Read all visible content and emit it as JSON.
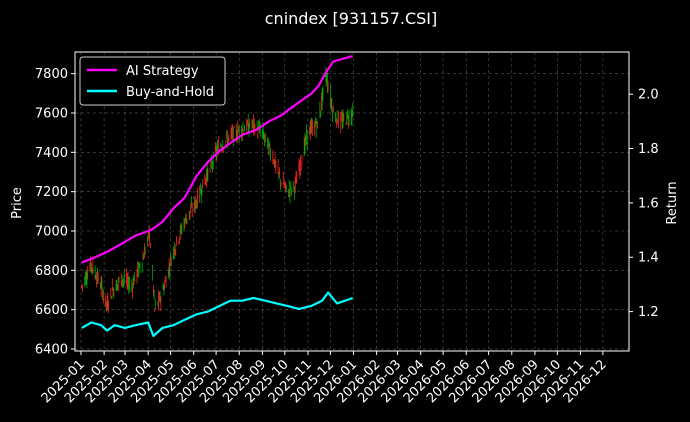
{
  "chart_data": {
    "type": "line",
    "title": "cnindex [931157.CSI]",
    "left_axis": {
      "label": "Price",
      "ylim": [
        6390,
        7910
      ],
      "ticks": [
        6400,
        6600,
        6800,
        7000,
        7200,
        7400,
        7600,
        7800
      ]
    },
    "right_axis": {
      "label": "Return",
      "ylim": [
        1.055,
        2.155
      ],
      "ticks": [
        "1.2",
        "1.4",
        "1.6",
        "1.8",
        "2.0"
      ]
    },
    "x_axis": {
      "start": "2024-12-24",
      "end": "2027-01-05",
      "ticks": [
        "2025-01",
        "2025-02",
        "2025-03",
        "2025-04",
        "2025-05",
        "2025-06",
        "2025-07",
        "2025-08",
        "2025-09",
        "2025-10",
        "2025-11",
        "2025-12",
        "2026-01",
        "2026-02",
        "2026-03",
        "2026-04",
        "2026-05",
        "2026-06",
        "2026-07",
        "2026-08",
        "2026-09",
        "2026-10",
        "2026-11",
        "2026-12"
      ]
    },
    "grid": true,
    "legend_position": "top-left",
    "colors": {
      "background": "#000000",
      "ai_strategy": "#ff00ff",
      "buy_and_hold": "#00ffff",
      "candle_up": "#ff2020",
      "candle_down": "#00b000",
      "grid": "#555555"
    },
    "price_path": [
      [
        "2025-01-02",
        6720
      ],
      [
        "2025-01-15",
        6830
      ],
      [
        "2025-01-28",
        6720
      ],
      [
        "2025-02-05",
        6620
      ],
      [
        "2025-02-12",
        6700
      ],
      [
        "2025-02-25",
        6760
      ],
      [
        "2025-03-10",
        6720
      ],
      [
        "2025-03-25",
        6860
      ],
      [
        "2025-04-03",
        6990
      ],
      [
        "2025-04-10",
        6600
      ],
      [
        "2025-04-20",
        6680
      ],
      [
        "2025-05-05",
        6900
      ],
      [
        "2025-05-20",
        7050
      ],
      [
        "2025-06-05",
        7150
      ],
      [
        "2025-06-20",
        7300
      ],
      [
        "2025-07-05",
        7430
      ],
      [
        "2025-07-20",
        7480
      ],
      [
        "2025-08-05",
        7520
      ],
      [
        "2025-08-20",
        7540
      ],
      [
        "2025-09-01",
        7500
      ],
      [
        "2025-09-15",
        7380
      ],
      [
        "2025-09-25",
        7260
      ],
      [
        "2025-10-05",
        7200
      ],
      [
        "2025-10-15",
        7230
      ],
      [
        "2025-11-01",
        7500
      ],
      [
        "2025-11-15",
        7550
      ],
      [
        "2025-11-25",
        7800
      ],
      [
        "2025-12-05",
        7600
      ],
      [
        "2025-12-15",
        7550
      ],
      [
        "2025-12-31",
        7600
      ]
    ],
    "series": [
      {
        "name": "AI Strategy",
        "points": [
          [
            "2025-01-02",
            1.38
          ],
          [
            "2025-01-20",
            1.4
          ],
          [
            "2025-02-05",
            1.42
          ],
          [
            "2025-02-25",
            1.45
          ],
          [
            "2025-03-15",
            1.48
          ],
          [
            "2025-04-05",
            1.5
          ],
          [
            "2025-04-20",
            1.53
          ],
          [
            "2025-05-05",
            1.58
          ],
          [
            "2025-05-20",
            1.62
          ],
          [
            "2025-06-05",
            1.7
          ],
          [
            "2025-06-20",
            1.75
          ],
          [
            "2025-07-05",
            1.79
          ],
          [
            "2025-07-20",
            1.82
          ],
          [
            "2025-08-05",
            1.85
          ],
          [
            "2025-08-25",
            1.87
          ],
          [
            "2025-09-10",
            1.9
          ],
          [
            "2025-09-25",
            1.92
          ],
          [
            "2025-10-10",
            1.95
          ],
          [
            "2025-10-25",
            1.98
          ],
          [
            "2025-11-05",
            2.0
          ],
          [
            "2025-11-15",
            2.03
          ],
          [
            "2025-11-25",
            2.08
          ],
          [
            "2025-12-05",
            2.12
          ],
          [
            "2025-12-31",
            2.14
          ]
        ]
      },
      {
        "name": "Buy-and-Hold",
        "points": [
          [
            "2025-01-02",
            1.14
          ],
          [
            "2025-01-15",
            1.16
          ],
          [
            "2025-01-28",
            1.15
          ],
          [
            "2025-02-05",
            1.13
          ],
          [
            "2025-02-15",
            1.15
          ],
          [
            "2025-03-01",
            1.14
          ],
          [
            "2025-03-15",
            1.15
          ],
          [
            "2025-04-01",
            1.16
          ],
          [
            "2025-04-08",
            1.11
          ],
          [
            "2025-04-20",
            1.14
          ],
          [
            "2025-05-05",
            1.15
          ],
          [
            "2025-05-20",
            1.17
          ],
          [
            "2025-06-05",
            1.19
          ],
          [
            "2025-06-20",
            1.2
          ],
          [
            "2025-07-05",
            1.22
          ],
          [
            "2025-07-20",
            1.24
          ],
          [
            "2025-08-05",
            1.24
          ],
          [
            "2025-08-20",
            1.25
          ],
          [
            "2025-09-05",
            1.24
          ],
          [
            "2025-09-20",
            1.23
          ],
          [
            "2025-10-05",
            1.22
          ],
          [
            "2025-10-20",
            1.21
          ],
          [
            "2025-11-05",
            1.22
          ],
          [
            "2025-11-20",
            1.24
          ],
          [
            "2025-11-28",
            1.27
          ],
          [
            "2025-12-10",
            1.23
          ],
          [
            "2025-12-31",
            1.25
          ]
        ]
      }
    ]
  }
}
